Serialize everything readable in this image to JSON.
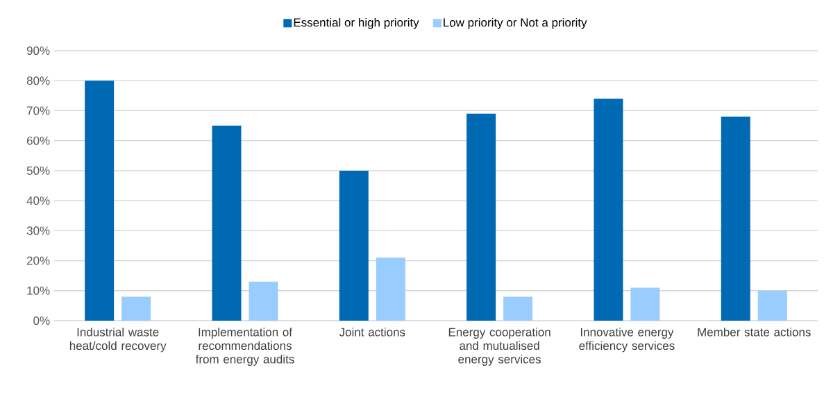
{
  "chart_data": {
    "type": "bar",
    "categories": [
      "Industrial waste heat/cold recovery",
      "Implementation of recommendations from energy audits",
      "Joint actions",
      "Energy cooperation and mutualised energy services",
      "Innovative energy efficiency services",
      "Member state actions"
    ],
    "series": [
      {
        "name": "Essential or high priority",
        "color": "#0069b4",
        "values": [
          80,
          65,
          50,
          69,
          74,
          68
        ]
      },
      {
        "name": "Low priority or Not a priority",
        "color": "#99ccff",
        "values": [
          8,
          13,
          21,
          8,
          11,
          10
        ]
      }
    ],
    "ylim": [
      0,
      90
    ],
    "yticks": [
      {
        "value": 0,
        "label": "0%"
      },
      {
        "value": 10,
        "label": "10%"
      },
      {
        "value": 20,
        "label": "20%"
      },
      {
        "value": 30,
        "label": "30%"
      },
      {
        "value": 40,
        "label": "40%"
      },
      {
        "value": 50,
        "label": "50%"
      },
      {
        "value": 60,
        "label": "60%"
      },
      {
        "value": 70,
        "label": "70%"
      },
      {
        "value": 80,
        "label": "80%"
      },
      {
        "value": 90,
        "label": "90%"
      }
    ],
    "grid": "y",
    "legend": "top"
  }
}
